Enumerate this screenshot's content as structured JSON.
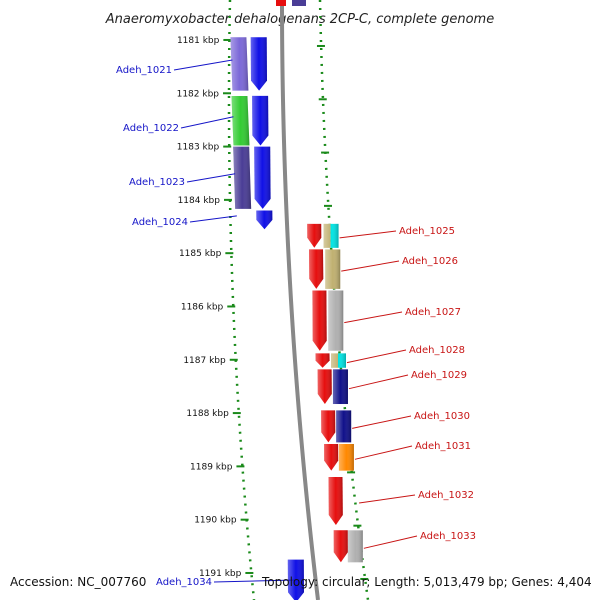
{
  "title": "Anaeromyxobacter dehalogenans 2CP-C, complete genome",
  "accession": "Accession: NC_007760",
  "topology": "Topology: circular; Length: 5,013,479 bp; Genes: 4,404",
  "ticks": [
    {
      "label": "1181 kbp",
      "kbp": 1181
    },
    {
      "label": "1182 kbp",
      "kbp": 1182
    },
    {
      "label": "1183 kbp",
      "kbp": 1183
    },
    {
      "label": "1184 kbp",
      "kbp": 1184
    },
    {
      "label": "1185 kbp",
      "kbp": 1185
    },
    {
      "label": "1186 kbp",
      "kbp": 1186
    },
    {
      "label": "1187 kbp",
      "kbp": 1187
    },
    {
      "label": "1188 kbp",
      "kbp": 1188
    },
    {
      "label": "1189 kbp",
      "kbp": 1189
    },
    {
      "label": "1190 kbp",
      "kbp": 1190
    },
    {
      "label": "1191 kbp",
      "kbp": 1191
    }
  ],
  "genes_forward": [
    {
      "name": "Adeh_1021",
      "start": 1180.95,
      "end": 1181.95,
      "cog_color": "#7b68d8"
    },
    {
      "name": "Adeh_1022",
      "start": 1182.05,
      "end": 1182.98,
      "cog_color": "#33cc33"
    },
    {
      "name": "Adeh_1023",
      "start": 1183.0,
      "end": 1184.17,
      "cog_color": "#4a3d96"
    },
    {
      "name": "Adeh_1024",
      "start": 1184.2,
      "end": 1184.55,
      "cog_color": ""
    },
    {
      "name": "Adeh_1034",
      "start": 1190.75,
      "end": 1191.55,
      "cog_color": ""
    }
  ],
  "genes_reverse": [
    {
      "name": "Adeh_1025",
      "start": 1184.45,
      "end": 1184.9,
      "cog_color": "#00e5e5",
      "cog_color2": "#c0b070"
    },
    {
      "name": "Adeh_1026",
      "start": 1184.93,
      "end": 1185.67,
      "cog_color": "#c0b070"
    },
    {
      "name": "Adeh_1027",
      "start": 1185.7,
      "end": 1186.83,
      "cog_color": "#b0b0b0"
    },
    {
      "name": "Adeh_1028",
      "start": 1186.88,
      "end": 1187.15,
      "cog_color": "#00e5e5",
      "cog_color2": "#c0b070"
    },
    {
      "name": "Adeh_1029",
      "start": 1187.18,
      "end": 1187.83,
      "cog_color": "#10108a"
    },
    {
      "name": "Adeh_1030",
      "start": 1187.95,
      "end": 1188.55,
      "cog_color": "#10108a"
    },
    {
      "name": "Adeh_1031",
      "start": 1188.58,
      "end": 1189.08,
      "cog_color": "#ff8800"
    },
    {
      "name": "Adeh_1032",
      "start": 1189.2,
      "end": 1190.1,
      "cog_color": ""
    },
    {
      "name": "Adeh_1033",
      "start": 1190.2,
      "end": 1190.8,
      "cog_color": "#b0b0b0"
    }
  ],
  "colors": {
    "forward_cds": "#1010e6",
    "reverse_cds": "#e60e0e",
    "backbone": "#888888",
    "tick_mark": "#1a8a1a",
    "label_forward": "#1515c8",
    "label_reverse": "#c81515"
  }
}
